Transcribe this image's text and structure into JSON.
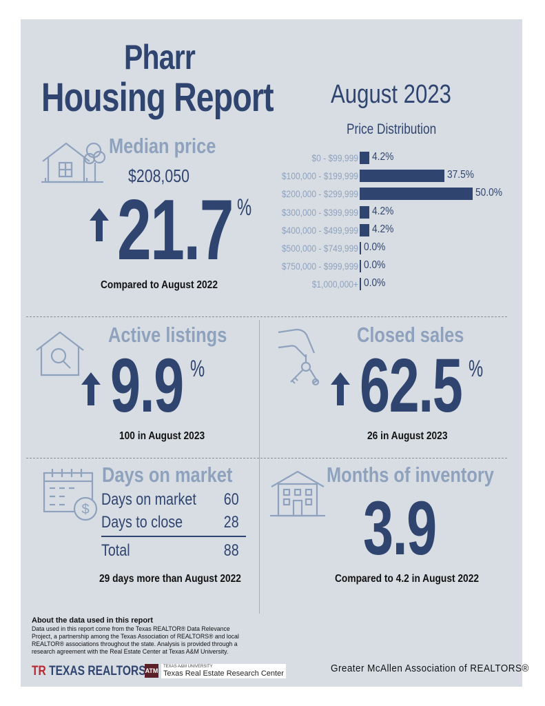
{
  "header": {
    "city": "Pharr",
    "title": "Housing Report",
    "month": "August 2023"
  },
  "median_price": {
    "label": "Median price",
    "value": "$208,050",
    "change": "21.7",
    "pct_sign": "%",
    "direction": "up",
    "caption": "Compared to August 2022"
  },
  "price_distribution": {
    "title": "Price Distribution",
    "rows": [
      {
        "range": "$0 - $99,999",
        "percent": 4.2,
        "value_label": "4.2%"
      },
      {
        "range": "$100,000 - $199,999",
        "percent": 37.5,
        "value_label": "37.5%"
      },
      {
        "range": "$200,000 - $299,999",
        "percent": 50.0,
        "value_label": "50.0%"
      },
      {
        "range": "$300,000 - $399,999",
        "percent": 4.2,
        "value_label": "4.2%"
      },
      {
        "range": "$400,000 - $499,999",
        "percent": 4.2,
        "value_label": "4.2%"
      },
      {
        "range": "$500,000 - $749,999",
        "percent": 0.0,
        "value_label": "0.0%"
      },
      {
        "range": "$750,000 - $999,999",
        "percent": 0.0,
        "value_label": "0.0%"
      },
      {
        "range": "$1,000,000+",
        "percent": 0.0,
        "value_label": "0.0%"
      }
    ]
  },
  "active_listings": {
    "label": "Active listings",
    "change": "9.9",
    "pct_sign": "%",
    "direction": "up",
    "caption": "100 in August 2023"
  },
  "closed_sales": {
    "label": "Closed sales",
    "change": "62.5",
    "pct_sign": "%",
    "direction": "up",
    "caption": "26 in August 2023"
  },
  "days_on_market": {
    "label": "Days on market",
    "rows": [
      {
        "name": "Days on market",
        "value": "60"
      },
      {
        "name": "Days to close",
        "value": "28"
      }
    ],
    "total_label": "Total",
    "total_value": "88",
    "caption": "29 days more than August 2022"
  },
  "months_inventory": {
    "label": "Months of inventory",
    "value": "3.9",
    "caption": "Compared to 4.2 in August 2022"
  },
  "footer": {
    "about_title": "About the data used in this report",
    "about_body": "Data used in this report come from the Texas REALTOR® Data Relevance Project, a partnership among the Texas Association of REALTORS® and local REALTOR® associations throughout the state. Analysis is provided through a research agreement with the Real Estate Center at Texas A&M University.",
    "texas_realtors": "TEXAS REALTORS",
    "texas_realtors_mark": "TR",
    "tamu_small": "TEXAS A&M UNIVERSITY",
    "tamu_name": "Texas Real Estate Research Center",
    "tamu_mark": "ATM",
    "association": "Greater McAllen Association of REALTORS®"
  },
  "colors": {
    "navy": "#2f4570",
    "slate": "#8fa2bd",
    "panel": "#d8dde4",
    "accent_red": "#b8272f"
  },
  "icons": [
    "house-tree-icon",
    "house-search-icon",
    "hand-keys-icon",
    "calendar-dollar-icon",
    "apartment-building-icon",
    "arrow-up-icon"
  ]
}
